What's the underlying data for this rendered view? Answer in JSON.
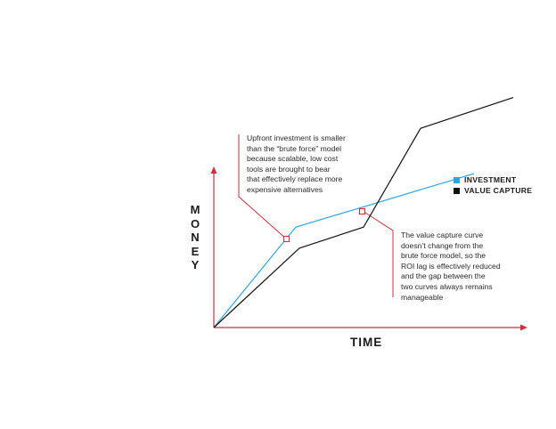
{
  "chart_data": {
    "type": "line",
    "xlabel": "TIME",
    "ylabel": "MONEY",
    "series": [
      {
        "name": "INVESTMENT",
        "color": "#2fa4dc",
        "points": [
          [
            0,
            0
          ],
          [
            0.23,
            0.62
          ],
          [
            0.73,
            0.95
          ]
        ]
      },
      {
        "name": "VALUE CAPTURE",
        "color": "#111111",
        "points": [
          [
            0,
            0
          ],
          [
            0.24,
            0.49
          ],
          [
            0.42,
            0.62
          ],
          [
            0.58,
            1.23
          ],
          [
            0.84,
            1.42
          ]
        ]
      }
    ]
  },
  "legend": [
    {
      "label": "INVESTMENT",
      "color": "#2fa4dc"
    },
    {
      "label": "VALUE CAPTURE",
      "color": "#111111"
    }
  ],
  "annotations": {
    "upfront": "Upfront investment is smaller\nthan the “brute force” model\nbecause scalable, low cost\ntools are brought to bear\nthat effectively replace more\nexpensive alternatives",
    "value_capture": "The value capture curve\ndoesn’t change from the\nbrute force model, so the\nROI lag is effectively reduced\nand the gap between the\ntwo curves always remains\nmanageable"
  },
  "colors": {
    "axis": "#c8323c",
    "callout": "#c8323c"
  }
}
